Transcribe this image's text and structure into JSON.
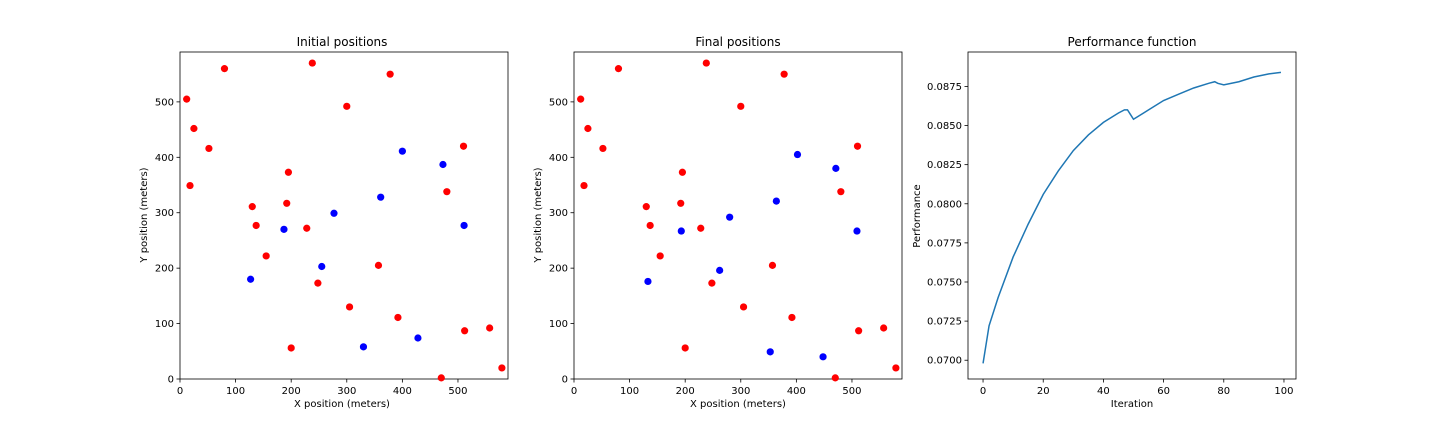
{
  "chart_data": [
    {
      "type": "scatter",
      "title": "Initial positions",
      "xlabel": "X position (meters)",
      "ylabel": "Y position (meters)",
      "xlim": [
        0,
        590
      ],
      "ylim": [
        0,
        590
      ],
      "xticks": [
        0,
        100,
        200,
        300,
        400,
        500
      ],
      "yticks": [
        0,
        100,
        200,
        300,
        400,
        500
      ],
      "grid": false,
      "series": [
        {
          "color": "#ff0000",
          "x": [
            12,
            25,
            18,
            52,
            80,
            130,
            137,
            155,
            195,
            192,
            200,
            228,
            238,
            248,
            300,
            305,
            357,
            378,
            392,
            470,
            480,
            510,
            512,
            557,
            579
          ],
          "y": [
            505,
            452,
            349,
            416,
            560,
            311,
            277,
            222,
            373,
            317,
            56,
            272,
            570,
            173,
            492,
            130,
            205,
            550,
            111,
            2,
            338,
            420,
            87,
            92,
            20
          ]
        },
        {
          "color": "#0000ff",
          "x": [
            127,
            187,
            255,
            277,
            330,
            361,
            400,
            428,
            473,
            511
          ],
          "y": [
            180,
            270,
            203,
            299,
            58,
            328,
            411,
            74,
            387,
            277
          ]
        }
      ]
    },
    {
      "type": "scatter",
      "title": "Final positions",
      "xlabel": "X position (meters)",
      "ylabel": "Y position (meters)",
      "xlim": [
        0,
        590
      ],
      "ylim": [
        0,
        590
      ],
      "xticks": [
        0,
        100,
        200,
        300,
        400,
        500
      ],
      "yticks": [
        0,
        100,
        200,
        300,
        400,
        500
      ],
      "grid": false,
      "series": [
        {
          "color": "#ff0000",
          "x": [
            12,
            25,
            18,
            52,
            80,
            130,
            137,
            155,
            195,
            192,
            200,
            228,
            238,
            248,
            300,
            305,
            357,
            378,
            392,
            470,
            480,
            510,
            512,
            557,
            579
          ],
          "y": [
            505,
            452,
            349,
            416,
            560,
            311,
            277,
            222,
            373,
            317,
            56,
            272,
            570,
            173,
            492,
            130,
            205,
            550,
            111,
            2,
            338,
            420,
            87,
            92,
            20
          ]
        },
        {
          "color": "#0000ff",
          "x": [
            133,
            193,
            262,
            280,
            353,
            364,
            402,
            448,
            471,
            509
          ],
          "y": [
            176,
            267,
            196,
            292,
            49,
            321,
            405,
            40,
            380,
            267
          ]
        }
      ]
    },
    {
      "type": "line",
      "title": "Performance function",
      "xlabel": "Iteration",
      "ylabel": "Performance",
      "xlim": [
        -5,
        104
      ],
      "ylim": [
        0.0688,
        0.0897
      ],
      "xticks": [
        0,
        20,
        40,
        60,
        80,
        100
      ],
      "yticks": [
        0.07,
        0.0725,
        0.075,
        0.0775,
        0.08,
        0.0825,
        0.085,
        0.0875
      ],
      "ytick_labels": [
        "0.0700",
        "0.0725",
        "0.0750",
        "0.0775",
        "0.0800",
        "0.0825",
        "0.0850",
        "0.0875"
      ],
      "grid": false,
      "series": [
        {
          "color": "#1f77b4",
          "x": [
            0,
            2,
            5,
            10,
            15,
            20,
            25,
            30,
            35,
            40,
            45,
            47,
            48,
            49,
            50,
            55,
            60,
            65,
            70,
            75,
            77,
            78,
            80,
            85,
            90,
            95,
            99
          ],
          "y": [
            0.0698,
            0.0722,
            0.074,
            0.0766,
            0.0787,
            0.0806,
            0.0821,
            0.0834,
            0.0844,
            0.0852,
            0.0858,
            0.086,
            0.086,
            0.0857,
            0.0854,
            0.086,
            0.0866,
            0.087,
            0.0874,
            0.0877,
            0.0878,
            0.0877,
            0.0876,
            0.0878,
            0.0881,
            0.0883,
            0.0884
          ]
        }
      ]
    }
  ]
}
